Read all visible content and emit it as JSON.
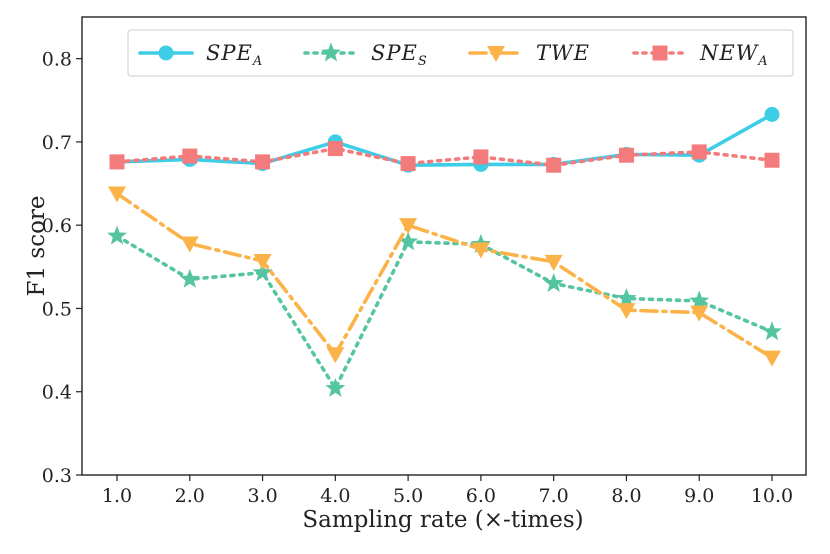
{
  "chart_data": {
    "type": "line",
    "xlabel": "Sampling rate (×-times)",
    "ylabel": "F1 score",
    "x": [
      "1.0",
      "2.0",
      "3.0",
      "4.0",
      "5.0",
      "6.0",
      "7.0",
      "8.0",
      "9.0",
      "10.0"
    ],
    "ylim": [
      0.3,
      0.85
    ],
    "yticks": [
      "0.3",
      "0.4",
      "0.5",
      "0.6",
      "0.7",
      "0.8"
    ],
    "legend_position": "top-right",
    "series": [
      {
        "name": "SPE",
        "sub": "A",
        "color": "#3dcde6",
        "marker": "circle",
        "line": "solid",
        "values": [
          0.676,
          0.679,
          0.674,
          0.7,
          0.672,
          0.673,
          0.673,
          0.685,
          0.684,
          0.733
        ]
      },
      {
        "name": "SPE",
        "sub": "S",
        "color": "#55c4a0",
        "marker": "star",
        "line": "dotted",
        "values": [
          0.587,
          0.535,
          0.543,
          0.404,
          0.58,
          0.577,
          0.53,
          0.512,
          0.509,
          0.472
        ]
      },
      {
        "name": "TWE",
        "sub": "",
        "color": "#fbb349",
        "marker": "triangle-down",
        "line": "dashdot",
        "values": [
          0.638,
          0.578,
          0.557,
          0.445,
          0.6,
          0.571,
          0.556,
          0.498,
          0.495,
          0.441
        ]
      },
      {
        "name": "NEW",
        "sub": "A",
        "color": "#f47b7b",
        "marker": "square",
        "line": "dotted",
        "values": [
          0.676,
          0.683,
          0.676,
          0.692,
          0.674,
          0.682,
          0.672,
          0.684,
          0.688,
          0.678
        ]
      }
    ]
  }
}
